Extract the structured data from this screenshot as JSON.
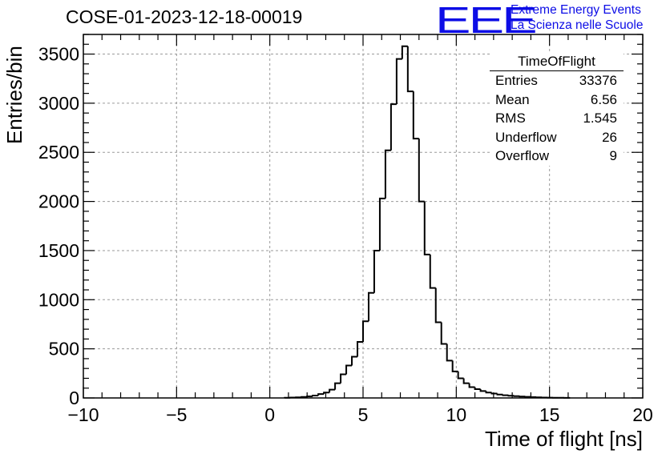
{
  "header": {
    "title": "COSE-01-2023-12-18-00019",
    "logo": "EEE",
    "logo_line1": "Extreme Energy Events",
    "logo_line2": "La Scienza nelle Scuole"
  },
  "stats_box": {
    "title": "TimeOfFlight",
    "rows": [
      {
        "label": "Entries",
        "value": "33376"
      },
      {
        "label": "Mean",
        "value": "6.56"
      },
      {
        "label": "RMS",
        "value": "1.545"
      },
      {
        "label": "Underflow",
        "value": "26"
      },
      {
        "label": "Overflow",
        "value": "9"
      }
    ]
  },
  "colors": {
    "logo": "#0d0de6",
    "line": "#000000",
    "grid": "#9a9a9a"
  },
  "chart_data": {
    "type": "histogram",
    "title": "COSE-01-2023-12-18-00019",
    "xlabel": "Time of flight [ns]",
    "ylabel": "Entries/bin",
    "xlim": [
      -10,
      20
    ],
    "ylim": [
      0,
      3700
    ],
    "xticks": [
      -10,
      -5,
      0,
      5,
      10,
      15,
      20
    ],
    "yticks": [
      0,
      500,
      1000,
      1500,
      2000,
      2500,
      3000,
      3500
    ],
    "grid": true,
    "bin_width": 0.3,
    "bin_start": 0.8,
    "values": [
      2,
      4,
      6,
      10,
      16,
      24,
      40,
      55,
      85,
      150,
      240,
      330,
      420,
      570,
      780,
      1070,
      1500,
      2030,
      2520,
      2990,
      3450,
      3580,
      3120,
      2640,
      2000,
      1460,
      1120,
      770,
      550,
      380,
      270,
      200,
      150,
      110,
      90,
      70,
      55,
      45,
      35,
      28,
      22,
      18,
      14,
      11,
      8,
      6,
      4,
      3,
      2,
      2,
      1
    ]
  }
}
